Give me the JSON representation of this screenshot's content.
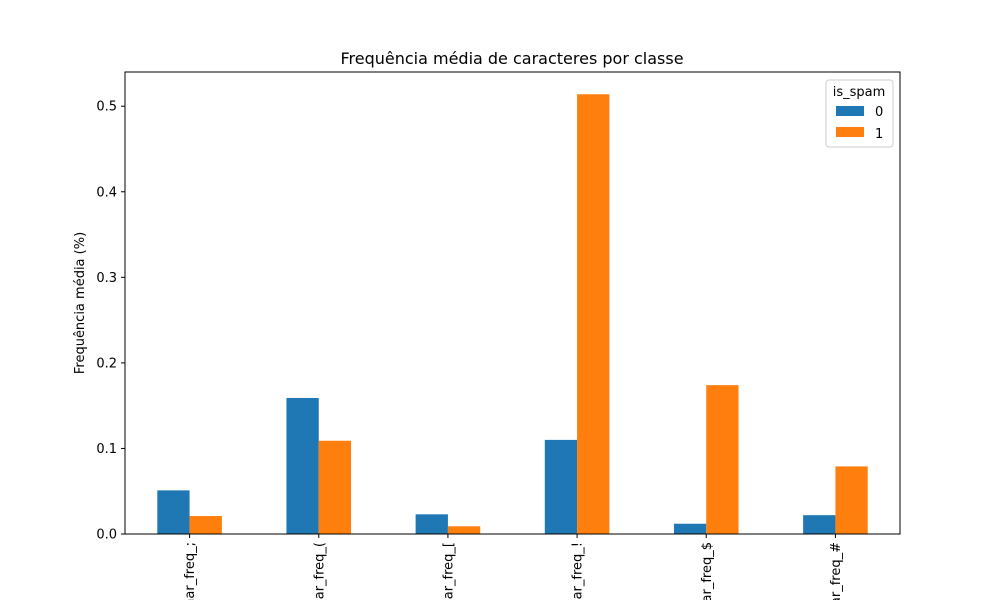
{
  "chart_data": {
    "type": "bar",
    "title": "Frequência média de caracteres por classe",
    "xlabel": "",
    "ylabel": "Frequência média (%)",
    "ylim": [
      0,
      0.54
    ],
    "yticks": [
      "0.0",
      "0.1",
      "0.2",
      "0.3",
      "0.4",
      "0.5"
    ],
    "categories": [
      "char_freq_;",
      "char_freq_(",
      "char_freq_[",
      "char_freq_!",
      "char_freq_$",
      "char_freq_#"
    ],
    "series": [
      {
        "name": "0",
        "values": [
          0.051,
          0.159,
          0.023,
          0.11,
          0.012,
          0.022
        ],
        "color": "#1f77b4"
      },
      {
        "name": "1",
        "values": [
          0.021,
          0.109,
          0.009,
          0.514,
          0.174,
          0.079
        ],
        "color": "#ff7f0e"
      }
    ],
    "legend": {
      "title": "is_spam",
      "placement": "top-right"
    },
    "grid": false
  }
}
